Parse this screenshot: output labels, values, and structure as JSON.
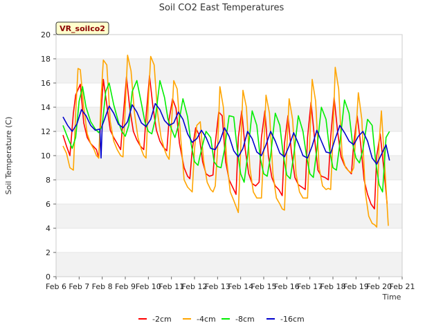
{
  "chart_data": {
    "type": "line",
    "title": "Soil CO2 East Temperatures",
    "xlabel": "Time",
    "ylabel": "Soil Temperature (C)",
    "badge": "VR_soilco2",
    "xlim": [
      6,
      21
    ],
    "ylim": [
      0,
      20
    ],
    "yticks": [
      0,
      2,
      4,
      6,
      8,
      10,
      12,
      14,
      16,
      18,
      20
    ],
    "xticks": [
      {
        "value": 6,
        "label": "Feb 6"
      },
      {
        "value": 7,
        "label": "Feb 7"
      },
      {
        "value": 8,
        "label": "Feb 8"
      },
      {
        "value": 9,
        "label": "Feb 9"
      },
      {
        "value": 10,
        "label": "Feb 10"
      },
      {
        "value": 11,
        "label": "Feb 11"
      },
      {
        "value": 12,
        "label": "Feb 12"
      },
      {
        "value": 13,
        "label": "Feb 13"
      },
      {
        "value": 14,
        "label": "Feb 14"
      },
      {
        "value": 15,
        "label": "Feb 15"
      },
      {
        "value": 16,
        "label": "Feb 16"
      },
      {
        "value": 17,
        "label": "Feb 17"
      },
      {
        "value": 18,
        "label": "Feb 18"
      },
      {
        "value": 19,
        "label": "Feb 19"
      },
      {
        "value": 20,
        "label": "Feb 20"
      },
      {
        "value": 21,
        "label": "Feb 21"
      }
    ],
    "grid": "horizontal bands",
    "legend_position": "bottom",
    "series": [
      {
        "name": "-2cm",
        "color": "#ff0000",
        "x": [
          6.3,
          6.45,
          6.6,
          6.75,
          6.85,
          7.05,
          7.2,
          7.35,
          7.5,
          7.65,
          7.75,
          7.85,
          7.95,
          8.05,
          8.2,
          8.35,
          8.5,
          8.65,
          8.8,
          8.9,
          9.05,
          9.2,
          9.35,
          9.5,
          9.65,
          9.8,
          9.9,
          10.05,
          10.2,
          10.35,
          10.5,
          10.65,
          10.8,
          10.9,
          11.05,
          11.2,
          11.35,
          11.55,
          11.7,
          11.8,
          11.9,
          12.05,
          12.2,
          12.35,
          12.5,
          12.65,
          12.8,
          12.9,
          13.05,
          13.2,
          13.35,
          13.5,
          13.65,
          13.8,
          13.9,
          14.05,
          14.2,
          14.35,
          14.5,
          14.65,
          14.8,
          14.9,
          15.05,
          15.2,
          15.35,
          15.5,
          15.65,
          15.8,
          15.9,
          16.05,
          16.2,
          16.35,
          16.5,
          16.65,
          16.8,
          16.9,
          17.05,
          17.2,
          17.35,
          17.5,
          17.65,
          17.8,
          17.9,
          18.05,
          18.2,
          18.35,
          18.5,
          18.65,
          18.8,
          18.9,
          19.05,
          19.2,
          19.35,
          19.5,
          19.65,
          19.8,
          19.9,
          20.05,
          20.2,
          20.35
        ],
        "y": [
          11.7,
          10.8,
          10.0,
          13.5,
          15.0,
          15.9,
          12.7,
          11.5,
          11.0,
          10.7,
          10.5,
          9.8,
          13.5,
          16.3,
          14.2,
          12.1,
          11.5,
          11.0,
          10.5,
          13.0,
          16.5,
          13.8,
          12.0,
          11.3,
          10.8,
          10.5,
          13.2,
          16.6,
          14.0,
          12.1,
          11.2,
          10.7,
          10.4,
          13.0,
          14.7,
          13.9,
          11.0,
          9.0,
          8.3,
          8.1,
          10.5,
          12.3,
          11.7,
          9.5,
          8.5,
          8.3,
          8.4,
          11.0,
          13.6,
          13.3,
          9.5,
          8.0,
          7.4,
          6.8,
          11.5,
          13.7,
          10.5,
          8.5,
          7.7,
          7.5,
          7.8,
          11.5,
          13.7,
          10.0,
          8.2,
          7.5,
          7.2,
          6.7,
          11.0,
          13.3,
          10.3,
          8.2,
          7.6,
          7.4,
          7.2,
          11.5,
          14.4,
          11.5,
          8.8,
          8.3,
          8.2,
          8.0,
          11.5,
          14.8,
          12.0,
          9.9,
          9.2,
          8.8,
          8.5,
          11.0,
          13.3,
          11.0,
          8.0,
          6.8,
          6.0,
          5.6,
          10.0,
          11.8,
          9.0,
          6.0
        ]
      },
      {
        "name": "-4cm",
        "color": "#ffa500",
        "x": [
          6.3,
          6.45,
          6.6,
          6.75,
          6.85,
          6.95,
          7.05,
          7.2,
          7.35,
          7.5,
          7.65,
          7.75,
          7.85,
          7.95,
          8.05,
          8.2,
          8.35,
          8.5,
          8.65,
          8.8,
          8.9,
          9.0,
          9.1,
          9.25,
          9.4,
          9.55,
          9.7,
          9.8,
          9.9,
          10.0,
          10.1,
          10.25,
          10.4,
          10.55,
          10.7,
          10.8,
          10.9,
          11.0,
          11.1,
          11.25,
          11.4,
          11.55,
          11.7,
          11.8,
          11.9,
          12.0,
          12.1,
          12.25,
          12.4,
          12.55,
          12.7,
          12.8,
          12.9,
          13.0,
          13.1,
          13.25,
          13.4,
          13.55,
          13.7,
          13.8,
          13.9,
          14.0,
          14.1,
          14.25,
          14.4,
          14.55,
          14.7,
          14.8,
          14.9,
          15.0,
          15.1,
          15.25,
          15.4,
          15.55,
          15.7,
          15.8,
          15.9,
          16.0,
          16.1,
          16.25,
          16.4,
          16.55,
          16.7,
          16.8,
          16.9,
          17.0,
          17.1,
          17.25,
          17.4,
          17.55,
          17.7,
          17.8,
          17.9,
          18.0,
          18.1,
          18.25,
          18.4,
          18.55,
          18.7,
          18.8,
          18.9,
          19.0,
          19.1,
          19.25,
          19.4,
          19.55,
          19.7,
          19.8,
          19.9,
          20.0,
          20.1,
          20.25,
          20.4
        ],
        "y": [
          10.8,
          10.2,
          9.0,
          8.8,
          13.5,
          17.2,
          17.1,
          14.0,
          11.8,
          11.0,
          10.5,
          10.0,
          9.8,
          14.8,
          17.9,
          17.5,
          12.8,
          11.2,
          10.5,
          10.0,
          9.9,
          14.0,
          18.3,
          17.0,
          13.5,
          11.5,
          10.5,
          10.0,
          9.8,
          14.5,
          18.2,
          17.5,
          13.5,
          11.5,
          10.5,
          10.0,
          9.7,
          12.5,
          16.2,
          15.5,
          11.5,
          8.0,
          7.4,
          7.2,
          7.0,
          10.5,
          12.5,
          12.8,
          9.5,
          7.8,
          7.2,
          7.0,
          7.5,
          10.5,
          15.7,
          14.0,
          9.5,
          7.0,
          6.3,
          5.8,
          5.3,
          10.5,
          15.4,
          14.0,
          9.0,
          7.0,
          6.5,
          6.5,
          6.5,
          10.5,
          15.0,
          13.5,
          8.5,
          6.5,
          6.0,
          5.6,
          5.5,
          10.5,
          14.7,
          13.0,
          8.5,
          7.0,
          6.5,
          6.5,
          6.5,
          11.5,
          16.3,
          14.5,
          9.0,
          7.5,
          7.2,
          7.3,
          7.2,
          11.5,
          17.3,
          15.5,
          10.0,
          9.0,
          8.7,
          8.6,
          9.0,
          12.0,
          15.2,
          13.0,
          7.0,
          5.0,
          4.4,
          4.3,
          4.1,
          11.0,
          13.7,
          9.0,
          4.2
        ]
      },
      {
        "name": "-8cm",
        "color": "#00ee00",
        "x": [
          6.3,
          6.5,
          6.7,
          6.85,
          7.0,
          7.15,
          7.3,
          7.5,
          7.7,
          7.85,
          8.0,
          8.15,
          8.3,
          8.5,
          8.7,
          8.85,
          9.0,
          9.15,
          9.3,
          9.5,
          9.7,
          9.85,
          10.0,
          10.15,
          10.3,
          10.5,
          10.7,
          10.85,
          11.0,
          11.15,
          11.3,
          11.5,
          11.7,
          11.85,
          12.0,
          12.15,
          12.3,
          12.5,
          12.7,
          12.85,
          13.0,
          13.15,
          13.3,
          13.5,
          13.7,
          13.85,
          14.0,
          14.15,
          14.3,
          14.5,
          14.7,
          14.85,
          15.0,
          15.15,
          15.3,
          15.5,
          15.7,
          15.85,
          16.0,
          16.15,
          16.3,
          16.5,
          16.7,
          16.85,
          17.0,
          17.15,
          17.3,
          17.5,
          17.7,
          17.85,
          18.0,
          18.15,
          18.3,
          18.5,
          18.7,
          18.85,
          19.0,
          19.15,
          19.3,
          19.5,
          19.7,
          19.85,
          20.0,
          20.15,
          20.3,
          20.45
        ],
        "y": [
          12.5,
          11.5,
          10.6,
          11.5,
          14.5,
          15.7,
          14.0,
          12.8,
          12.2,
          11.9,
          12.5,
          15.3,
          16.0,
          14.2,
          12.8,
          12.0,
          11.6,
          12.5,
          15.3,
          16.2,
          14.3,
          12.8,
          12.0,
          11.8,
          13.0,
          16.2,
          14.8,
          13.0,
          12.2,
          11.5,
          12.5,
          14.7,
          13.2,
          11.0,
          9.5,
          9.2,
          10.5,
          12.0,
          11.5,
          9.5,
          9.1,
          9.0,
          10.5,
          13.3,
          13.2,
          10.5,
          8.5,
          7.8,
          10.0,
          13.7,
          12.5,
          9.8,
          8.5,
          8.3,
          10.0,
          13.5,
          12.5,
          10.0,
          8.4,
          8.1,
          10.0,
          13.3,
          12.0,
          10.0,
          8.5,
          8.2,
          10.5,
          14.0,
          13.0,
          10.5,
          9.0,
          8.8,
          11.0,
          14.6,
          13.5,
          11.0,
          9.8,
          9.4,
          10.5,
          13.0,
          12.5,
          9.5,
          7.6,
          7.0,
          11.5,
          12.0
        ]
      },
      {
        "name": "-16cm",
        "color": "#0000cc",
        "x": [
          6.3,
          6.5,
          6.7,
          6.9,
          7.1,
          7.3,
          7.5,
          7.7,
          7.9,
          7.95,
          8.0,
          8.1,
          8.3,
          8.5,
          8.7,
          8.9,
          9.1,
          9.3,
          9.5,
          9.7,
          9.9,
          10.1,
          10.3,
          10.5,
          10.7,
          10.9,
          11.1,
          11.3,
          11.5,
          11.7,
          11.9,
          12.1,
          12.3,
          12.5,
          12.7,
          12.9,
          13.1,
          13.3,
          13.5,
          13.7,
          13.9,
          14.1,
          14.3,
          14.5,
          14.7,
          14.9,
          15.1,
          15.3,
          15.5,
          15.7,
          15.9,
          16.1,
          16.3,
          16.5,
          16.7,
          16.9,
          17.1,
          17.3,
          17.5,
          17.7,
          17.9,
          18.1,
          18.3,
          18.5,
          18.7,
          18.9,
          19.1,
          19.3,
          19.5,
          19.7,
          19.9,
          20.1,
          20.3,
          20.45
        ],
        "y": [
          13.2,
          12.5,
          12.0,
          12.6,
          13.8,
          13.3,
          12.5,
          12.1,
          12.2,
          9.8,
          12.5,
          13.0,
          14.1,
          13.5,
          12.6,
          12.3,
          12.8,
          14.2,
          13.6,
          12.7,
          12.4,
          13.0,
          14.3,
          13.8,
          12.9,
          12.5,
          12.7,
          13.6,
          13.0,
          11.8,
          11.1,
          11.4,
          12.1,
          11.5,
          10.6,
          10.5,
          11.2,
          12.3,
          11.6,
          10.4,
          9.9,
          10.6,
          12.0,
          11.4,
          10.3,
          10.0,
          10.9,
          12.0,
          11.2,
          10.2,
          9.9,
          10.8,
          11.9,
          11.0,
          10.0,
          9.8,
          10.8,
          12.1,
          11.2,
          10.3,
          10.2,
          11.4,
          12.5,
          11.9,
          11.2,
          10.9,
          11.6,
          12.0,
          11.2,
          9.8,
          9.3,
          10.1,
          10.9,
          9.6
        ]
      }
    ]
  }
}
